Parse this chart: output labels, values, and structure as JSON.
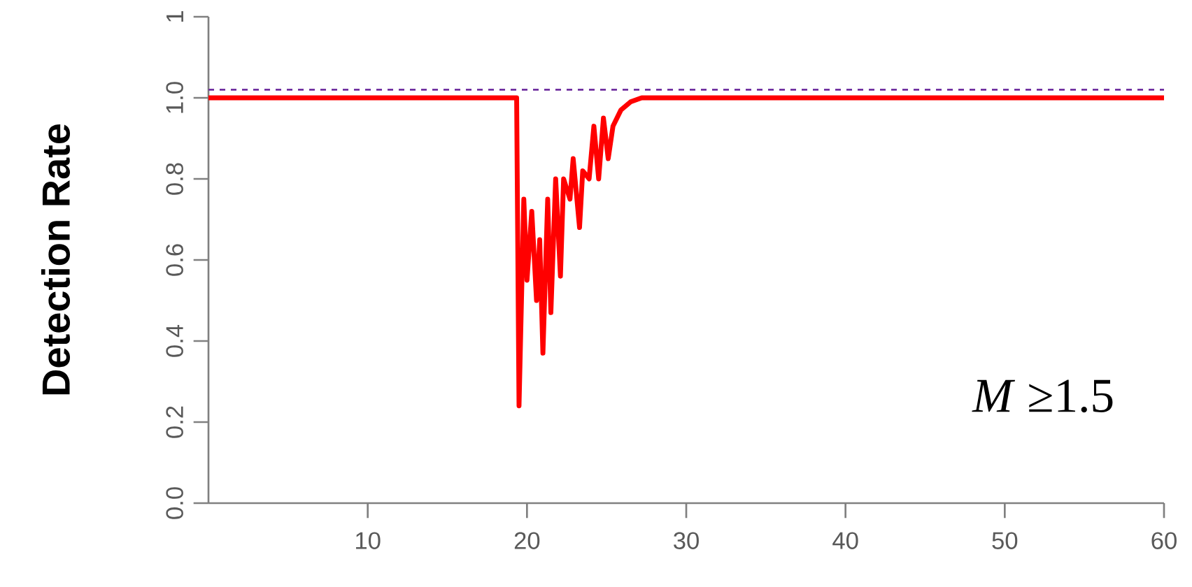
{
  "chart_data": {
    "type": "line",
    "ylabel": "Detection Rate",
    "x": [
      0,
      19.35,
      19.5,
      19.8,
      20.0,
      20.3,
      20.6,
      20.8,
      21.0,
      21.3,
      21.5,
      21.8,
      22.1,
      22.3,
      22.7,
      22.9,
      23.3,
      23.5,
      23.9,
      24.2,
      24.5,
      24.8,
      25.1,
      25.4,
      25.9,
      26.5,
      27.2,
      60
    ],
    "series": [
      {
        "color": "#ff0000",
        "values": [
          1.0,
          1.0,
          0.24,
          0.75,
          0.55,
          0.72,
          0.5,
          0.65,
          0.37,
          0.75,
          0.47,
          0.8,
          0.56,
          0.8,
          0.75,
          0.85,
          0.68,
          0.82,
          0.8,
          0.93,
          0.8,
          0.95,
          0.85,
          0.93,
          0.97,
          0.99,
          1.0,
          1.0
        ]
      }
    ],
    "xlim": [
      0,
      60
    ],
    "xticks": [
      10,
      20,
      30,
      40,
      50,
      60
    ],
    "ylim": [
      0,
      1.2
    ],
    "yticks": [
      {
        "value": 0,
        "label": "0.0"
      },
      {
        "value": 0.2,
        "label": "0.2"
      },
      {
        "value": 0.4,
        "label": "0.4"
      },
      {
        "value": 0.6,
        "label": "0.6"
      },
      {
        "value": 0.8,
        "label": "0.8"
      },
      {
        "value": 1.0,
        "label": "1.0"
      },
      {
        "value": 1.2,
        "label": "1"
      }
    ],
    "ref_lines": [
      {
        "axis": "y",
        "value": 1.02,
        "color": "#7030a0",
        "line_style": "dashed"
      }
    ],
    "annotations": [
      "*M* ≥1.5"
    ]
  }
}
